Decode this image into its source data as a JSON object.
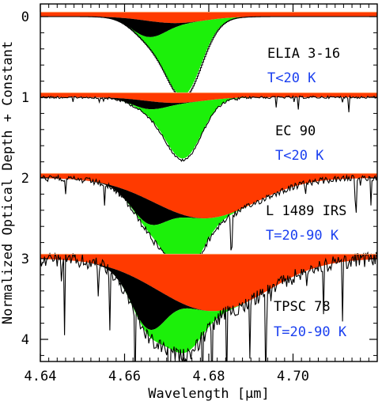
{
  "chart_data": {
    "type": "area",
    "xlabel": "Wavelength [μm]",
    "ylabel": "Normalized Optical Depth + Constant",
    "xlim": [
      4.64,
      4.72
    ],
    "ylim": [
      4.3,
      -0.15
    ],
    "xticks": [
      "4.64",
      "4.66",
      "4.68",
      "4.70"
    ],
    "yticks": [
      "0",
      "1",
      "2",
      "3",
      "4"
    ],
    "components": [
      {
        "color": "#ff3a00",
        "center": 4.6725,
        "width": 0.0095,
        "role": "broad"
      },
      {
        "color": "#000000",
        "center": 4.6655,
        "width": 0.004,
        "role": "narrow-blue"
      },
      {
        "color": "#1cf00a",
        "center": 4.674,
        "width": 0.0042,
        "role": "middle"
      }
    ],
    "panels": [
      {
        "name": "ELIA 3-16",
        "temperature": "T<20 K",
        "offset": 0,
        "depth_broad": 0.08,
        "depth_black": 0.2,
        "depth_green": 0.88,
        "broad_center": 4.672,
        "broad_width": 0.007,
        "noise": 0.0
      },
      {
        "name": "EC 90",
        "temperature": "T<20 K",
        "offset": 1,
        "depth_broad": 0.07,
        "depth_black": 0.1,
        "depth_green": 0.68,
        "broad_center": 4.672,
        "broad_width": 0.007,
        "noise": 0.015
      },
      {
        "name": "L 1489 IRS",
        "temperature": "T=20-90 K",
        "offset": 2,
        "depth_broad": 0.5,
        "depth_black": 0.3,
        "depth_green": 0.7,
        "broad_center": 4.679,
        "broad_width": 0.012,
        "noise": 0.04
      },
      {
        "name": "TPSC 78",
        "temperature": "T=20-90 K",
        "offset": 3,
        "depth_broad": 0.65,
        "depth_black": 0.55,
        "depth_green": 0.55,
        "broad_center": 4.681,
        "broad_width": 0.013,
        "noise": 0.09
      }
    ]
  }
}
